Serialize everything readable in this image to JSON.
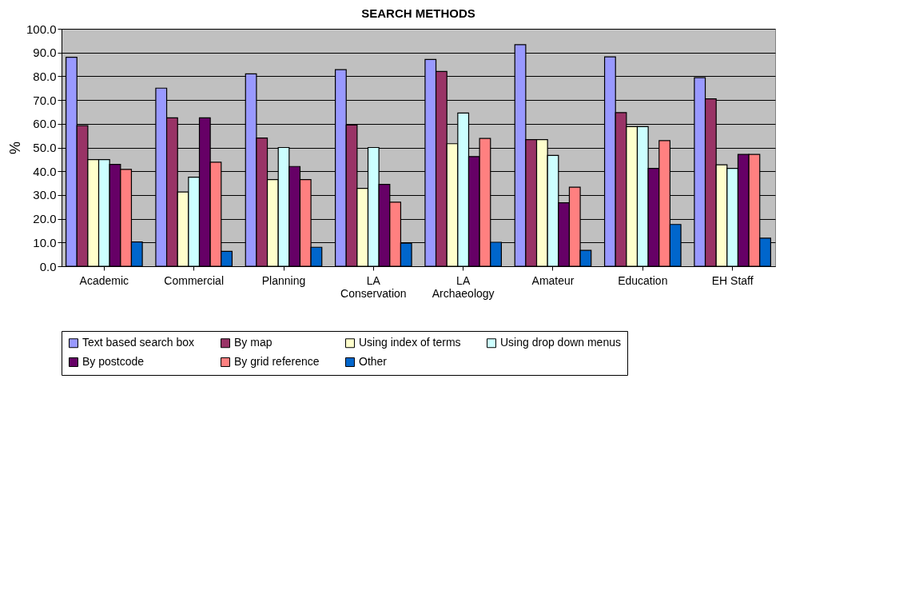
{
  "chart_data": {
    "type": "bar",
    "title": "SEARCH METHODS",
    "ylabel": "%",
    "categories": [
      "Academic",
      "Commercial",
      "Planning",
      "LA Conservation",
      "LA Archaeology",
      "Amateur",
      "Education",
      "EH Staff"
    ],
    "series": [
      {
        "name": "Text based search box",
        "color": "#9999ff",
        "values": [
          88.0,
          75.0,
          81.0,
          82.8,
          87.1,
          93.3,
          88.2,
          79.4
        ]
      },
      {
        "name": "By map",
        "color": "#993366",
        "values": [
          59.2,
          62.5,
          54.0,
          59.5,
          82.0,
          53.3,
          64.7,
          70.5
        ]
      },
      {
        "name": "Using index of terms",
        "color": "#ffffcc",
        "values": [
          44.9,
          31.3,
          36.5,
          32.8,
          51.6,
          53.3,
          58.8,
          42.7
        ]
      },
      {
        "name": "Using drop down menus",
        "color": "#ccffff",
        "values": [
          44.9,
          37.5,
          50.0,
          50.0,
          64.5,
          46.7,
          58.8,
          41.2
        ]
      },
      {
        "name": "By postcode",
        "color": "#660066",
        "values": [
          42.9,
          62.5,
          42.0,
          34.5,
          46.2,
          26.7,
          41.2,
          47.1
        ]
      },
      {
        "name": "By grid reference",
        "color": "#ff8080",
        "values": [
          40.8,
          43.8,
          36.5,
          27.0,
          53.8,
          33.3,
          52.9,
          47.1
        ]
      },
      {
        "name": "Other",
        "color": "#0066cc",
        "values": [
          10.2,
          6.3,
          8.0,
          9.7,
          10.1,
          6.7,
          17.6,
          11.8
        ]
      }
    ],
    "ylim": [
      0,
      100
    ],
    "yticks": [
      {
        "value": 0,
        "label": "0.0"
      },
      {
        "value": 10,
        "label": "10.0"
      },
      {
        "value": 20,
        "label": "20.0"
      },
      {
        "value": 30,
        "label": "30.0"
      },
      {
        "value": 40,
        "label": "40.0"
      },
      {
        "value": 50,
        "label": "50.0"
      },
      {
        "value": 60,
        "label": "60.0"
      },
      {
        "value": 70,
        "label": "70.0"
      },
      {
        "value": 80,
        "label": "80.0"
      },
      {
        "value": 90,
        "label": "90.0"
      },
      {
        "value": 100,
        "label": "100.0"
      }
    ],
    "grid": "y",
    "legend": "bottom"
  }
}
